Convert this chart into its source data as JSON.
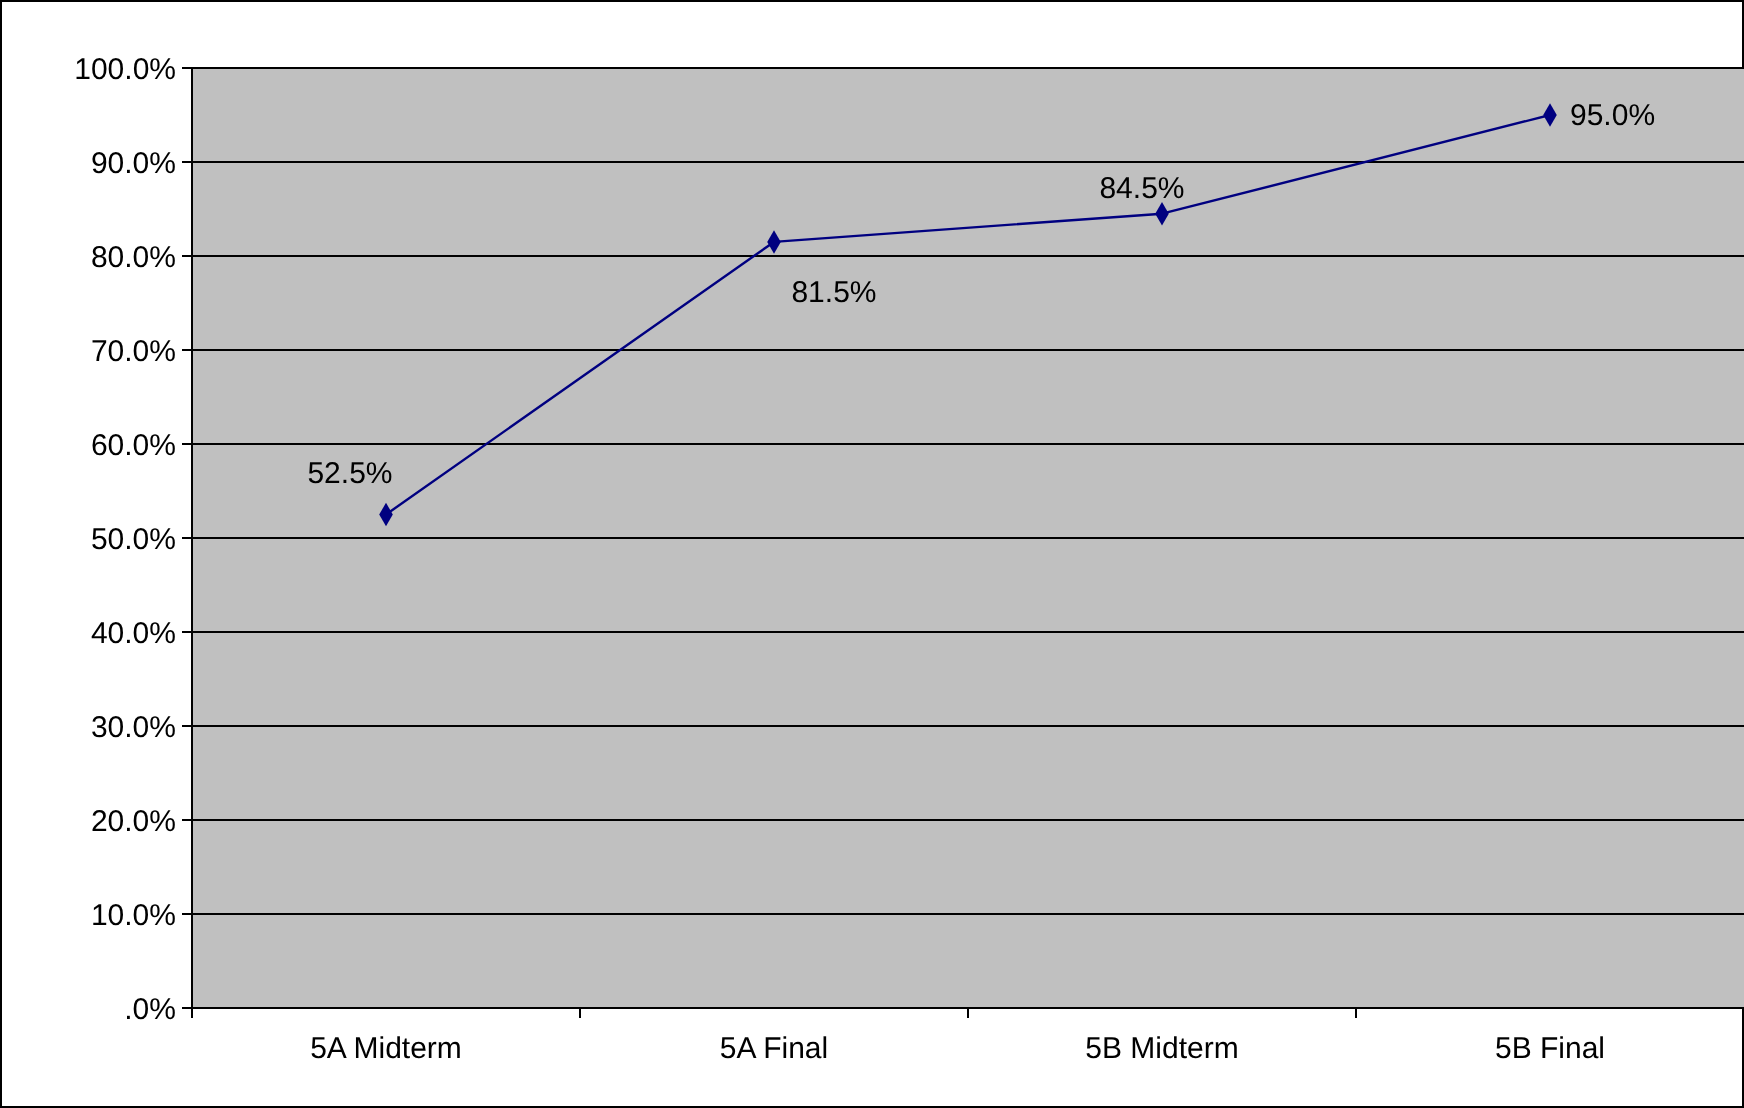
{
  "chart_data": {
    "type": "line",
    "categories": [
      "5A Midterm",
      "5A Final",
      "5B Midterm",
      "5B Final"
    ],
    "series": [
      {
        "color": "#000080",
        "values": [
          52.5,
          81.5,
          84.5,
          95.0
        ],
        "value_labels": [
          "52.5%",
          "81.5%",
          "84.5%",
          "95.0%"
        ]
      }
    ],
    "ylim": [
      0,
      100
    ],
    "yticks": [
      {
        "value": 0,
        "label": ".0%"
      },
      {
        "value": 10,
        "label": "10.0%"
      },
      {
        "value": 20,
        "label": "20.0%"
      },
      {
        "value": 30,
        "label": "30.0%"
      },
      {
        "value": 40,
        "label": "40.0%"
      },
      {
        "value": 50,
        "label": "50.0%"
      },
      {
        "value": 60,
        "label": "60.0%"
      },
      {
        "value": 70,
        "label": "70.0%"
      },
      {
        "value": 80,
        "label": "80.0%"
      },
      {
        "value": 90,
        "label": "90.0%"
      },
      {
        "value": 100,
        "label": "100.0%"
      }
    ],
    "grid": "y",
    "marker": "diamond",
    "line_style": "solid"
  }
}
